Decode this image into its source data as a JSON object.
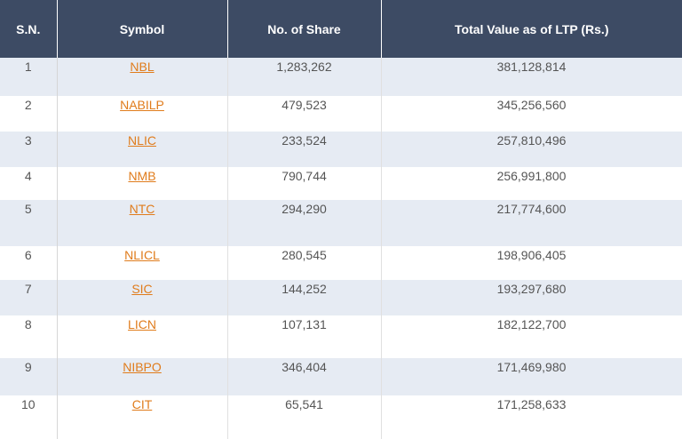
{
  "table": {
    "headers": {
      "sn": "S.N.",
      "symbol": "Symbol",
      "shares": "No. of Share",
      "total": "Total Value as of LTP (Rs.)"
    },
    "rows": [
      {
        "sn": "1",
        "symbol": "NBL",
        "shares": "1,283,262",
        "total": "381,128,814"
      },
      {
        "sn": "2",
        "symbol": "NABILP",
        "shares": "479,523",
        "total": "345,256,560"
      },
      {
        "sn": "3",
        "symbol": "NLIC",
        "shares": "233,524",
        "total": "257,810,496"
      },
      {
        "sn": "4",
        "symbol": "NMB",
        "shares": "790,744",
        "total": "256,991,800"
      },
      {
        "sn": "5",
        "symbol": "NTC",
        "shares": "294,290",
        "total": "217,774,600"
      },
      {
        "sn": "6",
        "symbol": "NLICL",
        "shares": "280,545",
        "total": "198,906,405"
      },
      {
        "sn": "7",
        "symbol": "SIC",
        "shares": "144,252",
        "total": "193,297,680"
      },
      {
        "sn": "8",
        "symbol": "LICN",
        "shares": "107,131",
        "total": "182,122,700"
      },
      {
        "sn": "9",
        "symbol": "NIBPO",
        "shares": "346,404",
        "total": "171,469,980"
      },
      {
        "sn": "10",
        "symbol": "CIT",
        "shares": "65,541",
        "total": "171,258,633"
      }
    ]
  },
  "colors": {
    "header_bg": "#3d4b64",
    "header_text": "#ffffff",
    "stripe_bg": "#e6ebf3",
    "link": "#e07c1c",
    "body_text": "#555555"
  }
}
